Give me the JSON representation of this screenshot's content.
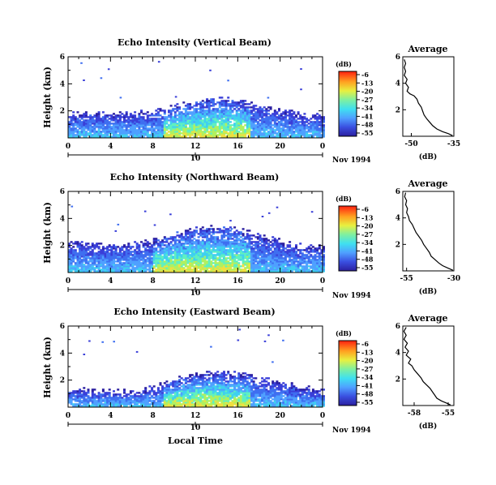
{
  "chart_data": [
    {
      "type": "heatmap",
      "title": "Echo Intensity (Vertical Beam)",
      "ylabel": "Height (km)",
      "xlim": [
        0,
        24
      ],
      "ylim": [
        0,
        6
      ],
      "x_ticks": [
        "0",
        "4",
        "8",
        "12",
        "16",
        "20",
        "0"
      ],
      "y_ticks": [
        "2",
        "4",
        "6"
      ],
      "date_axis": {
        "tick_label": "10",
        "caption": "Nov 1994"
      },
      "colorbar": {
        "unit": "(dB)",
        "ticks": [
          "-6",
          "-13",
          "-20",
          "-27",
          "-34",
          "-41",
          "-48",
          "-55"
        ]
      },
      "echo_top_km": [
        [
          0,
          1.6
        ],
        [
          2,
          1.7
        ],
        [
          4,
          1.7
        ],
        [
          6,
          1.7
        ],
        [
          8,
          1.8
        ],
        [
          10,
          2.2
        ],
        [
          12,
          2.6
        ],
        [
          14,
          2.8
        ],
        [
          16,
          2.6
        ],
        [
          18,
          2.3
        ],
        [
          20,
          1.9
        ],
        [
          22,
          1.6
        ],
        [
          24,
          1.6
        ]
      ],
      "core_hours": [
        9,
        17
      ],
      "average_profile": {
        "title": "Average",
        "xlabel": "(dB)",
        "x_ticks": [
          "-50",
          "-35"
        ],
        "xlim": [
          -53,
          -35
        ],
        "y_ticks": [
          "2",
          "4",
          "6"
        ],
        "points": [
          [
            -35.5,
            0.05
          ],
          [
            -37,
            0.2
          ],
          [
            -39,
            0.35
          ],
          [
            -41,
            0.55
          ],
          [
            -42.5,
            0.8
          ],
          [
            -43.5,
            1.05
          ],
          [
            -44.5,
            1.3
          ],
          [
            -45.5,
            1.6
          ],
          [
            -46,
            1.9
          ],
          [
            -46.5,
            2.2
          ],
          [
            -47.5,
            2.5
          ],
          [
            -48,
            2.8
          ],
          [
            -49,
            3.05
          ],
          [
            -50.5,
            3.2
          ],
          [
            -51.5,
            3.4
          ],
          [
            -51,
            3.7
          ],
          [
            -52,
            4.0
          ],
          [
            -51.5,
            4.3
          ],
          [
            -52.5,
            4.6
          ],
          [
            -52,
            4.9
          ],
          [
            -52.5,
            5.2
          ],
          [
            -52,
            5.5
          ],
          [
            -52.5,
            5.8
          ]
        ]
      }
    },
    {
      "type": "heatmap",
      "title": "Echo Intensity (Northward Beam)",
      "ylabel": "Height (km)",
      "xlim": [
        0,
        24
      ],
      "ylim": [
        0,
        6
      ],
      "x_ticks": [
        "0",
        "4",
        "8",
        "12",
        "16",
        "20",
        "0"
      ],
      "y_ticks": [
        "2",
        "4",
        "6"
      ],
      "date_axis": {
        "tick_label": "10",
        "caption": "Nov 1994"
      },
      "colorbar": {
        "unit": "(dB)",
        "ticks": [
          "-6",
          "-13",
          "-20",
          "-27",
          "-34",
          "-41",
          "-48",
          "-55"
        ]
      },
      "echo_top_km": [
        [
          0,
          2.1
        ],
        [
          2,
          2.0
        ],
        [
          4,
          1.9
        ],
        [
          6,
          2.0
        ],
        [
          8,
          2.2
        ],
        [
          10,
          2.7
        ],
        [
          12,
          3.1
        ],
        [
          14,
          3.2
        ],
        [
          16,
          3.0
        ],
        [
          18,
          2.6
        ],
        [
          20,
          2.2
        ],
        [
          22,
          1.8
        ],
        [
          24,
          1.7
        ]
      ],
      "core_hours": [
        8,
        17
      ],
      "average_profile": {
        "title": "Average",
        "xlabel": "(dB)",
        "x_ticks": [
          "-55",
          "-30"
        ],
        "xlim": [
          -57,
          -30
        ],
        "y_ticks": [
          "2",
          "4",
          "6"
        ],
        "points": [
          [
            -30.5,
            0.05
          ],
          [
            -33,
            0.2
          ],
          [
            -36,
            0.4
          ],
          [
            -38,
            0.6
          ],
          [
            -40,
            0.85
          ],
          [
            -42,
            1.1
          ],
          [
            -43,
            1.4
          ],
          [
            -44.5,
            1.7
          ],
          [
            -46,
            2.0
          ],
          [
            -47,
            2.3
          ],
          [
            -48.5,
            2.6
          ],
          [
            -50,
            2.9
          ],
          [
            -51,
            3.2
          ],
          [
            -52,
            3.5
          ],
          [
            -53.5,
            3.8
          ],
          [
            -54,
            4.1
          ],
          [
            -55,
            4.4
          ],
          [
            -54.5,
            4.7
          ],
          [
            -55.5,
            5.0
          ],
          [
            -55,
            5.3
          ],
          [
            -56,
            5.6
          ],
          [
            -55.5,
            5.9
          ]
        ]
      }
    },
    {
      "type": "heatmap",
      "title": "Echo Intensity (Eastward Beam)",
      "ylabel": "Height (km)",
      "xlim": [
        0,
        24
      ],
      "ylim": [
        0,
        6
      ],
      "x_ticks": [
        "0",
        "4",
        "8",
        "12",
        "16",
        "20",
        "0"
      ],
      "y_ticks": [
        "2",
        "4",
        "6"
      ],
      "date_axis": {
        "tick_label": "10",
        "caption": "Nov 1994"
      },
      "xlabel": "Local Time",
      "colorbar": {
        "unit": "(dB)",
        "ticks": [
          "-6",
          "-13",
          "-20",
          "-27",
          "-34",
          "-41",
          "-48",
          "-55"
        ]
      },
      "echo_top_km": [
        [
          0,
          1.2
        ],
        [
          2,
          1.1
        ],
        [
          4,
          1.0
        ],
        [
          6,
          1.0
        ],
        [
          8,
          1.3
        ],
        [
          10,
          1.9
        ],
        [
          12,
          2.3
        ],
        [
          14,
          2.4
        ],
        [
          16,
          2.3
        ],
        [
          18,
          2.0
        ],
        [
          20,
          1.7
        ],
        [
          22,
          1.3
        ],
        [
          24,
          1.1
        ]
      ],
      "core_hours": [
        9,
        17
      ],
      "average_profile": {
        "title": "Average",
        "xlabel": "(dB)",
        "x_ticks": [
          "-58",
          "-55"
        ],
        "xlim": [
          -59,
          -54.5
        ],
        "y_ticks": [
          "2",
          "4",
          "6"
        ],
        "points": [
          [
            -54.8,
            0.05
          ],
          [
            -55.2,
            0.2
          ],
          [
            -55.6,
            0.35
          ],
          [
            -56,
            0.55
          ],
          [
            -56.2,
            0.8
          ],
          [
            -56.4,
            1.05
          ],
          [
            -56.6,
            1.3
          ],
          [
            -56.9,
            1.55
          ],
          [
            -57.2,
            1.8
          ],
          [
            -57.4,
            2.1
          ],
          [
            -57.7,
            2.4
          ],
          [
            -58,
            2.7
          ],
          [
            -58.2,
            3.0
          ],
          [
            -58.5,
            3.2
          ],
          [
            -58.3,
            3.5
          ],
          [
            -58.7,
            3.8
          ],
          [
            -58.5,
            4.1
          ],
          [
            -58.8,
            4.4
          ],
          [
            -58.6,
            4.7
          ],
          [
            -58.9,
            5.0
          ],
          [
            -58.7,
            5.3
          ],
          [
            -58.9,
            5.6
          ],
          [
            -58.7,
            5.9
          ]
        ]
      }
    }
  ]
}
